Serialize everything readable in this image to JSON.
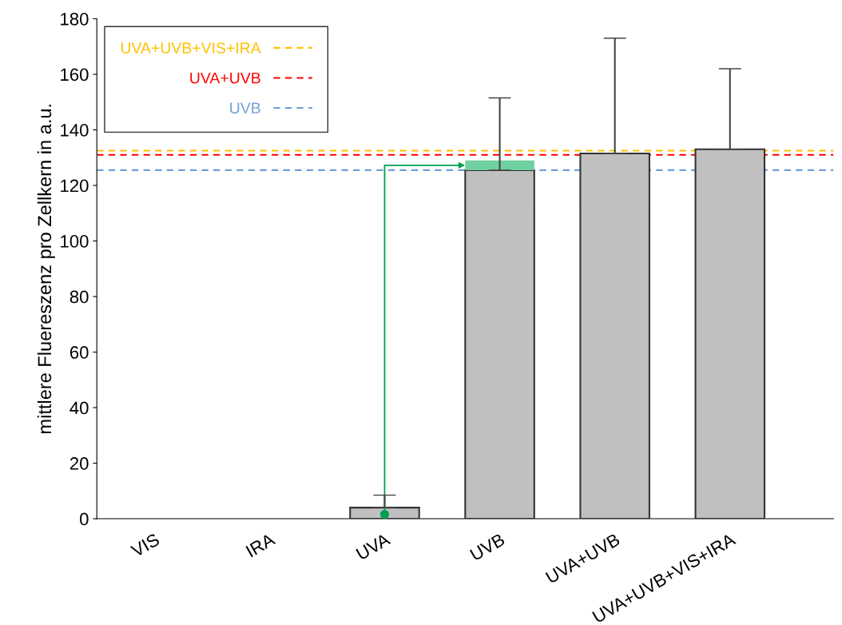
{
  "chart_data": {
    "type": "bar",
    "stacked": true,
    "ylabel": "mittlere Fluereszenz pro Zellkern in a.u.",
    "categories": [
      "VIS",
      "IRA",
      "UVA",
      "UVB",
      "UVA+UVB",
      "UVA+UVB+VIS+IRA"
    ],
    "series": [
      {
        "color": "#c0c0c0",
        "values": [
          0,
          0,
          4,
          125.5,
          131.5,
          133
        ],
        "errors": [
          null,
          null,
          [
            4,
            8.5
          ],
          [
            125.5,
            151.5
          ],
          [
            131.5,
            173
          ],
          [
            133,
            162
          ]
        ]
      },
      {
        "color": "#70d0a0",
        "values": [
          null,
          null,
          null,
          3.5,
          null,
          null
        ]
      }
    ],
    "ylim": [
      0,
      180
    ],
    "yticks": [
      0,
      20,
      40,
      60,
      80,
      100,
      120,
      140,
      160,
      180
    ],
    "ref_lines": [
      {
        "axis": "y",
        "value": 132.5,
        "label": "UVA+UVB+VIS+IRA",
        "color": "#ffc000",
        "line_style": "dashed"
      },
      {
        "axis": "y",
        "value": 131,
        "label": "UVA+UVB",
        "color": "#ff0000",
        "line_style": "dashed"
      },
      {
        "axis": "y",
        "value": 125.5,
        "label": "UVB",
        "color": "#6f9fd8",
        "line_style": "dashed"
      }
    ],
    "legend": "top left",
    "grid": false
  }
}
